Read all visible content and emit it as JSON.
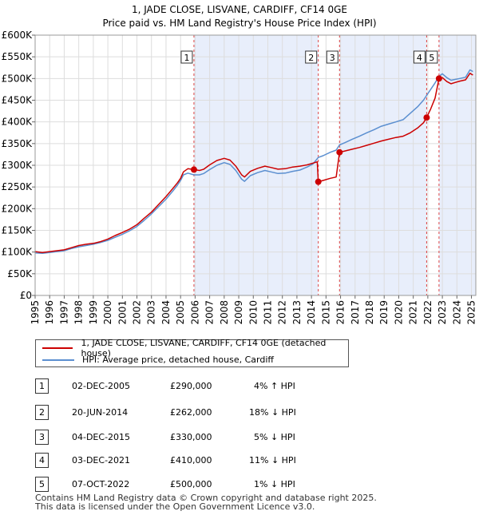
{
  "chart_data": {
    "type": "line",
    "title": "1, JADE CLOSE, LISVANE, CARDIFF, CF14 0GE",
    "subtitle": "Price paid vs. HM Land Registry's House Price Index (HPI)",
    "xlabel": "",
    "ylabel": "",
    "xlim": [
      1995,
      2025.3
    ],
    "ylim": [
      0,
      600000
    ],
    "x_ticks": [
      "1995",
      "1996",
      "1997",
      "1998",
      "1999",
      "2000",
      "2001",
      "2002",
      "2003",
      "2004",
      "2005",
      "2006",
      "2007",
      "2008",
      "2009",
      "2010",
      "2011",
      "2012",
      "2013",
      "2014",
      "2015",
      "2016",
      "2017",
      "2018",
      "2019",
      "2020",
      "2021",
      "2022",
      "2023",
      "2024",
      "2025"
    ],
    "y_ticks": [
      {
        "value": 0,
        "label": "£0"
      },
      {
        "value": 50000,
        "label": "£50K"
      },
      {
        "value": 100000,
        "label": "£100K"
      },
      {
        "value": 150000,
        "label": "£150K"
      },
      {
        "value": 200000,
        "label": "£200K"
      },
      {
        "value": 250000,
        "label": "£250K"
      },
      {
        "value": 300000,
        "label": "£300K"
      },
      {
        "value": 350000,
        "label": "£350K"
      },
      {
        "value": 400000,
        "label": "£400K"
      },
      {
        "value": 450000,
        "label": "£450K"
      },
      {
        "value": 500000,
        "label": "£500K"
      },
      {
        "value": 550000,
        "label": "£550K"
      },
      {
        "value": 600000,
        "label": "£600K"
      }
    ],
    "grid": true,
    "legend_position": "bottom",
    "series": [
      {
        "name": "1, JADE CLOSE, LISVANE, CARDIFF, CF14 0GE (detached house)",
        "color": "#cc0000",
        "points": [
          [
            1995.0,
            101000
          ],
          [
            1995.5,
            99000
          ],
          [
            1996.0,
            101000
          ],
          [
            1996.5,
            103000
          ],
          [
            1997.0,
            105000
          ],
          [
            1997.5,
            110000
          ],
          [
            1998.0,
            115000
          ],
          [
            1998.5,
            118000
          ],
          [
            1999.0,
            120000
          ],
          [
            1999.5,
            124000
          ],
          [
            2000.0,
            130000
          ],
          [
            2000.5,
            138000
          ],
          [
            2001.0,
            145000
          ],
          [
            2001.5,
            153000
          ],
          [
            2002.0,
            163000
          ],
          [
            2002.5,
            178000
          ],
          [
            2003.0,
            192000
          ],
          [
            2003.5,
            210000
          ],
          [
            2004.0,
            228000
          ],
          [
            2004.5,
            248000
          ],
          [
            2004.8,
            260000
          ],
          [
            2005.0,
            270000
          ],
          [
            2005.2,
            285000
          ],
          [
            2005.5,
            292000
          ],
          [
            2005.92,
            290000
          ],
          [
            2006.3,
            288000
          ],
          [
            2006.6,
            291000
          ],
          [
            2007.0,
            301000
          ],
          [
            2007.5,
            311000
          ],
          [
            2008.0,
            316000
          ],
          [
            2008.4,
            312000
          ],
          [
            2008.8,
            298000
          ],
          [
            2009.2,
            278000
          ],
          [
            2009.4,
            273000
          ],
          [
            2009.8,
            286000
          ],
          [
            2010.3,
            293000
          ],
          [
            2010.8,
            298000
          ],
          [
            2011.2,
            295000
          ],
          [
            2011.7,
            291000
          ],
          [
            2012.2,
            292000
          ],
          [
            2012.7,
            296000
          ],
          [
            2013.2,
            298000
          ],
          [
            2013.7,
            301000
          ],
          [
            2014.1,
            305000
          ],
          [
            2014.4,
            308000
          ],
          [
            2014.47,
            262000
          ],
          [
            2014.8,
            265000
          ],
          [
            2015.3,
            270000
          ],
          [
            2015.7,
            273000
          ],
          [
            2015.93,
            330000
          ],
          [
            2016.3,
            333000
          ],
          [
            2016.8,
            337000
          ],
          [
            2017.3,
            341000
          ],
          [
            2017.8,
            346000
          ],
          [
            2018.3,
            351000
          ],
          [
            2018.8,
            356000
          ],
          [
            2019.3,
            360000
          ],
          [
            2019.8,
            364000
          ],
          [
            2020.3,
            367000
          ],
          [
            2020.8,
            375000
          ],
          [
            2021.3,
            386000
          ],
          [
            2021.7,
            398000
          ],
          [
            2021.92,
            410000
          ],
          [
            2022.2,
            430000
          ],
          [
            2022.5,
            455000
          ],
          [
            2022.77,
            500000
          ],
          [
            2023.0,
            502000
          ],
          [
            2023.3,
            493000
          ],
          [
            2023.6,
            488000
          ],
          [
            2023.9,
            491000
          ],
          [
            2024.2,
            494000
          ],
          [
            2024.6,
            497000
          ],
          [
            2024.9,
            512000
          ],
          [
            2025.1,
            508000
          ]
        ]
      },
      {
        "name": "HPI: Average price, detached house, Cardiff",
        "color": "#5b8fd0",
        "points": [
          [
            1995.0,
            98000
          ],
          [
            1995.5,
            97000
          ],
          [
            1996.0,
            99000
          ],
          [
            1996.5,
            101000
          ],
          [
            1997.0,
            103000
          ],
          [
            1997.5,
            108000
          ],
          [
            1998.0,
            112000
          ],
          [
            1998.5,
            115000
          ],
          [
            1999.0,
            118000
          ],
          [
            1999.5,
            122000
          ],
          [
            2000.0,
            127000
          ],
          [
            2000.5,
            134000
          ],
          [
            2001.0,
            141000
          ],
          [
            2001.5,
            149000
          ],
          [
            2002.0,
            159000
          ],
          [
            2002.5,
            173000
          ],
          [
            2003.0,
            188000
          ],
          [
            2003.5,
            205000
          ],
          [
            2004.0,
            222000
          ],
          [
            2004.5,
            242000
          ],
          [
            2004.8,
            255000
          ],
          [
            2005.0,
            265000
          ],
          [
            2005.2,
            278000
          ],
          [
            2005.5,
            282000
          ],
          [
            2005.92,
            278000
          ],
          [
            2006.3,
            278000
          ],
          [
            2006.6,
            281000
          ],
          [
            2007.0,
            290000
          ],
          [
            2007.5,
            300000
          ],
          [
            2008.0,
            306000
          ],
          [
            2008.4,
            302000
          ],
          [
            2008.8,
            288000
          ],
          [
            2009.2,
            268000
          ],
          [
            2009.4,
            263000
          ],
          [
            2009.8,
            276000
          ],
          [
            2010.3,
            283000
          ],
          [
            2010.8,
            288000
          ],
          [
            2011.2,
            285000
          ],
          [
            2011.7,
            281000
          ],
          [
            2012.2,
            282000
          ],
          [
            2012.7,
            286000
          ],
          [
            2013.2,
            289000
          ],
          [
            2013.7,
            296000
          ],
          [
            2014.1,
            303000
          ],
          [
            2014.47,
            318000
          ],
          [
            2014.8,
            322000
          ],
          [
            2015.3,
            330000
          ],
          [
            2015.7,
            335000
          ],
          [
            2015.93,
            347000
          ],
          [
            2016.3,
            352000
          ],
          [
            2016.8,
            360000
          ],
          [
            2017.3,
            367000
          ],
          [
            2017.8,
            375000
          ],
          [
            2018.3,
            382000
          ],
          [
            2018.8,
            390000
          ],
          [
            2019.3,
            395000
          ],
          [
            2019.8,
            400000
          ],
          [
            2020.3,
            405000
          ],
          [
            2020.8,
            420000
          ],
          [
            2021.3,
            435000
          ],
          [
            2021.7,
            450000
          ],
          [
            2021.92,
            461000
          ],
          [
            2022.2,
            475000
          ],
          [
            2022.5,
            490000
          ],
          [
            2022.77,
            505000
          ],
          [
            2023.0,
            511000
          ],
          [
            2023.3,
            502000
          ],
          [
            2023.6,
            496000
          ],
          [
            2023.9,
            498000
          ],
          [
            2024.2,
            500000
          ],
          [
            2024.6,
            503000
          ],
          [
            2024.9,
            520000
          ],
          [
            2025.1,
            516000
          ]
        ]
      }
    ],
    "sales": [
      {
        "id": "1",
        "date": "02-DEC-2005",
        "year": 2005.92,
        "price": 290000,
        "price_label": "£290,000",
        "hpi": "4% ↑ HPI"
      },
      {
        "id": "2",
        "date": "20-JUN-2014",
        "year": 2014.47,
        "price": 262000,
        "price_label": "£262,000",
        "hpi": "18% ↓ HPI"
      },
      {
        "id": "3",
        "date": "04-DEC-2015",
        "year": 2015.93,
        "price": 330000,
        "price_label": "£330,000",
        "hpi": "5% ↓ HPI"
      },
      {
        "id": "4",
        "date": "03-DEC-2021",
        "year": 2021.92,
        "price": 410000,
        "price_label": "£410,000",
        "hpi": "11% ↓ HPI"
      },
      {
        "id": "5",
        "date": "07-OCT-2022",
        "year": 2022.77,
        "price": 500000,
        "price_label": "£500,000",
        "hpi": "1% ↓ HPI"
      }
    ],
    "shaded_periods": [
      [
        2005.92,
        2014.47
      ],
      [
        2015.93,
        2021.92
      ],
      [
        2022.77,
        2025.3
      ]
    ]
  },
  "legend": {
    "property_label": "1, JADE CLOSE, LISVANE, CARDIFF, CF14 0GE (detached house)",
    "hpi_label": "HPI: Average price, detached house, Cardiff"
  },
  "footer": {
    "line1": "Contains HM Land Registry data © Crown copyright and database right 2025.",
    "line2": "This data is licensed under the Open Government Licence v3.0."
  }
}
